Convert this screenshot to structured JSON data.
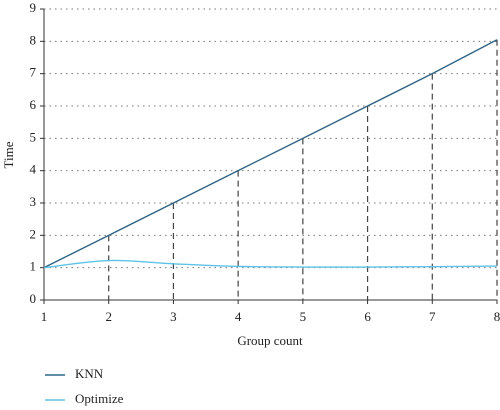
{
  "chart_data": {
    "type": "line",
    "x": [
      1,
      2,
      3,
      4,
      5,
      6,
      7,
      8
    ],
    "x_label": "Group count",
    "y_label": "Time",
    "series": [
      {
        "name": "KNN",
        "color": "#2e6585",
        "values": [
          1,
          2,
          3,
          4,
          5,
          6,
          7,
          8.05
        ],
        "smooth": false,
        "drop_lines": true
      },
      {
        "name": "Optimize",
        "color": "#5ec3e6",
        "values": [
          1,
          1.22,
          1.12,
          1.04,
          1.02,
          1.02,
          1.03,
          1.05
        ],
        "smooth": true,
        "drop_lines": false
      }
    ],
    "xlim": [
      1,
      8
    ],
    "xticks": [
      1,
      2,
      3,
      4,
      5,
      6,
      7,
      8
    ],
    "ylim": [
      0,
      9
    ],
    "yticks": [
      0,
      1,
      2,
      3,
      4,
      5,
      6,
      7,
      8,
      9
    ],
    "grid": true,
    "legend": "bottom-left"
  }
}
